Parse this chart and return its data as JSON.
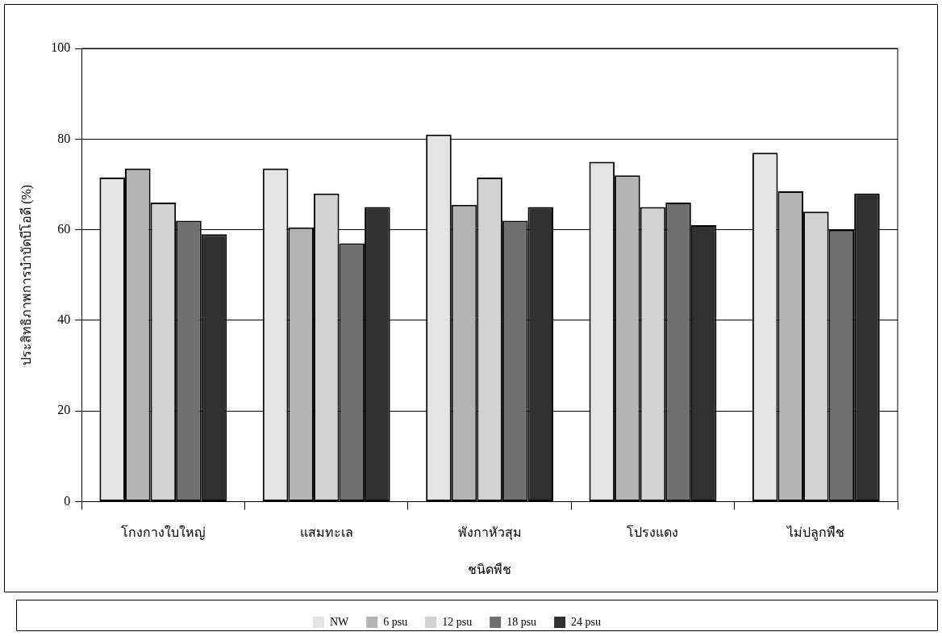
{
  "chart_data": {
    "type": "bar",
    "xlabel": "ชนิดพืช",
    "ylabel": "ประสิทธิภาพการบำบัดบีโอดี (%)",
    "categories": [
      "โกงกางใบใหญ่",
      "แสมทะเล",
      "พังกาหัวสุม",
      "โปรงแดง",
      "ไม่ปลูกพืช"
    ],
    "series": [
      {
        "name": "NW",
        "color": "#e4e4e4",
        "values": [
          71.5,
          73.5,
          81,
          75,
          77
        ]
      },
      {
        "name": "6 psu",
        "color": "#b4b4b4",
        "values": [
          73.5,
          60.5,
          65.5,
          72,
          68.5
        ]
      },
      {
        "name": "12 psu",
        "color": "#d2d2d2",
        "values": [
          66,
          68,
          71.5,
          65,
          64
        ]
      },
      {
        "name": "18 psu",
        "color": "#707070",
        "values": [
          62,
          57,
          62,
          66,
          60
        ]
      },
      {
        "name": "24 psu",
        "color": "#303030",
        "values": [
          59,
          65,
          65,
          61,
          68
        ]
      }
    ],
    "ylim": [
      0,
      100
    ],
    "yticks": [
      0,
      20,
      40,
      60,
      80,
      100
    ],
    "grid": "y",
    "legend": "bottom"
  }
}
